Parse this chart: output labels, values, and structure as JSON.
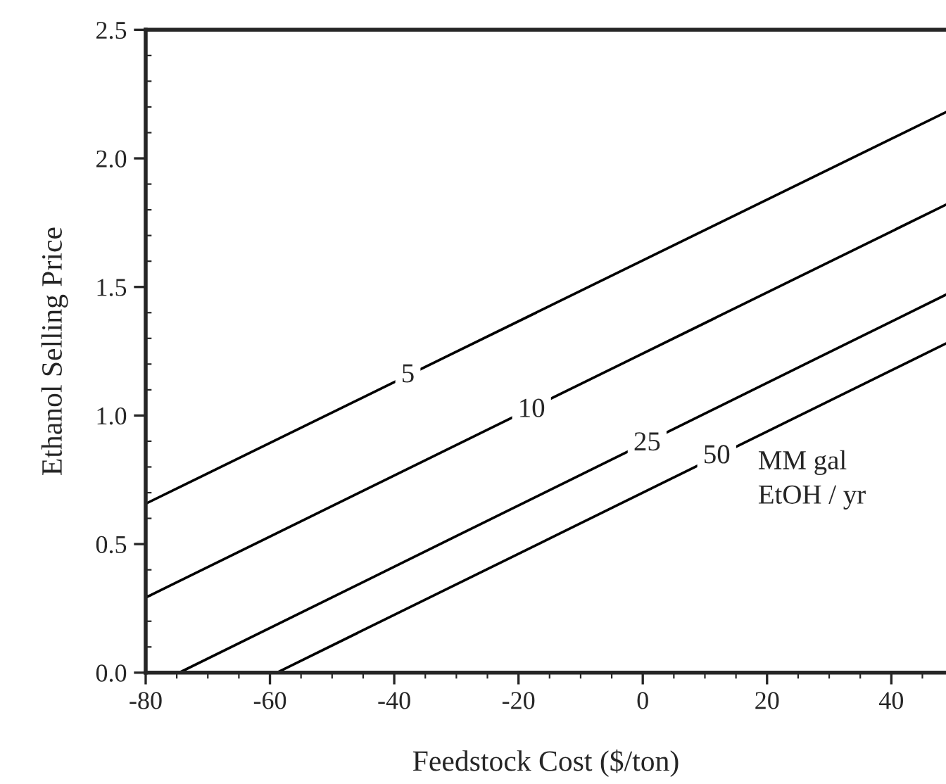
{
  "chart_data": {
    "type": "line",
    "xlabel": "Feedstock Cost ($/ton)",
    "ylabel": "Ethanol Selling Price",
    "xlim": [
      -80,
      48.8
    ],
    "ylim": [
      0,
      2.5
    ],
    "xticks": [
      -80,
      -60,
      -40,
      -20,
      0,
      20,
      40
    ],
    "yticks": [
      {
        "value": 0,
        "label": "0.0"
      },
      0.5,
      {
        "value": 1,
        "label": "1.0"
      },
      1.5,
      {
        "value": 2,
        "label": "2.0"
      },
      2.5
    ],
    "grid": false,
    "legend": false,
    "marker": "none",
    "line_style": "solid",
    "series": [
      {
        "color": "#000000",
        "x": [
          -80,
          48.8
        ],
        "values": [
          0.657,
          2.18
        ]
      },
      {
        "color": "#000000",
        "x": [
          -80,
          48.8
        ],
        "values": [
          0.292,
          1.82
        ]
      },
      {
        "color": "#000000",
        "x": [
          -74.6,
          48.8
        ],
        "values": [
          0,
          1.47
        ]
      },
      {
        "color": "#000000",
        "x": [
          -58.9,
          48.8
        ],
        "values": [
          0,
          1.28
        ]
      }
    ],
    "annotations": [
      {
        "text": "5",
        "x": -37.8,
        "y": 1.155
      },
      {
        "text": "10",
        "x": -17.9,
        "y": 1.02
      },
      {
        "text": "25",
        "x": 0.7,
        "y": 0.89
      },
      {
        "text": "50",
        "x": 11.9,
        "y": 0.84
      },
      "MM gal\nEtOH / yr"
    ]
  }
}
